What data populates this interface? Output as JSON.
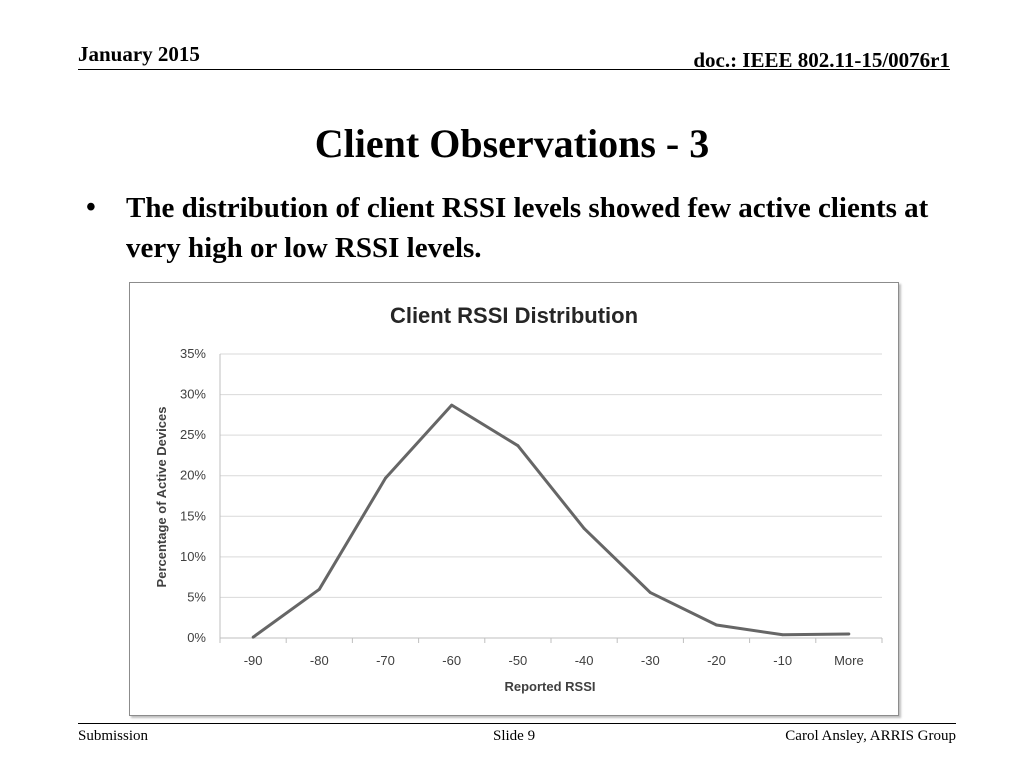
{
  "header": {
    "date": "January 2015",
    "doc": "doc.: IEEE 802.11-15/0076r1"
  },
  "slide": {
    "title": "Client Observations - 3",
    "bullet_symbol": "•",
    "bullet": "The distribution of client RSSI levels showed few active clients at very high or low RSSI levels."
  },
  "footer": {
    "left": "Submission",
    "center": "Slide 9",
    "right": "Carol Ansley, ARRIS Group"
  },
  "chart_data": {
    "type": "line",
    "title": "Client RSSI Distribution",
    "xlabel": "Reported RSSI",
    "ylabel": "Percentage of Active Devices",
    "categories": [
      "-90",
      "-80",
      "-70",
      "-60",
      "-50",
      "-40",
      "-30",
      "-20",
      "-10",
      "More"
    ],
    "series": [
      {
        "values": [
          0.1,
          6.0,
          19.7,
          28.7,
          23.7,
          13.5,
          5.6,
          1.6,
          0.4,
          0.5
        ],
        "color": "#666666"
      }
    ],
    "ylim": [
      0,
      35
    ],
    "yticks": [
      "0%",
      "5%",
      "10%",
      "15%",
      "20%",
      "25%",
      "30%",
      "35%"
    ],
    "grid": true,
    "legend": "none"
  }
}
